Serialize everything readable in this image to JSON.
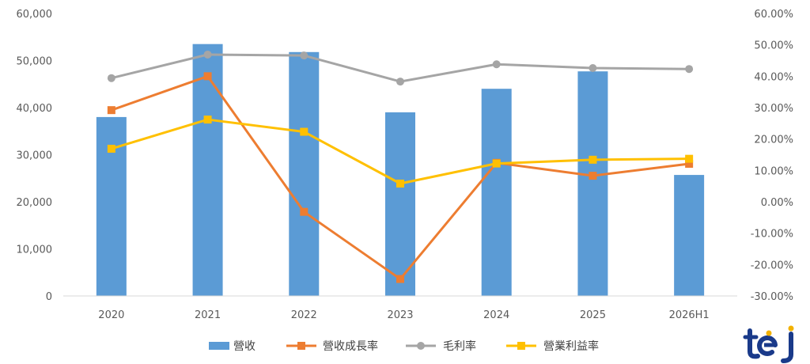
{
  "chart_data": {
    "type": "bar+line",
    "categories": [
      "2020",
      "2021",
      "2022",
      "2023",
      "2024",
      "2025",
      "2026H1"
    ],
    "left_axis": {
      "min": 0,
      "max": 60000,
      "step": 10000,
      "tick_labels": [
        "0",
        "10,000",
        "20,000",
        "30,000",
        "40,000",
        "50,000",
        "60,000"
      ]
    },
    "right_axis": {
      "min": -30,
      "max": 60,
      "step": 10,
      "tick_labels": [
        "-30.00%",
        "-20.00%",
        "-10.00%",
        "0.00%",
        "10.00%",
        "20.00%",
        "30.00%",
        "40.00%",
        "50.00%",
        "60.00%"
      ]
    },
    "series": [
      {
        "name": "營收",
        "type": "bar",
        "axis": "left",
        "color": "#5B9BD5",
        "values": [
          38000,
          53500,
          51800,
          39000,
          44000,
          47700,
          25700
        ]
      },
      {
        "name": "營收成長率",
        "type": "line",
        "axis": "right",
        "marker": "square",
        "color": "#ED7D31",
        "values": [
          29.2,
          40.0,
          -3.2,
          -24.6,
          12.4,
          8.3,
          12.1
        ]
      },
      {
        "name": "毛利率",
        "type": "line",
        "axis": "right",
        "marker": "circle",
        "color": "#A5A5A5",
        "values": [
          39.4,
          46.9,
          46.6,
          38.3,
          43.8,
          42.6,
          42.3
        ]
      },
      {
        "name": "營業利益率",
        "type": "line",
        "axis": "right",
        "marker": "square",
        "color": "#FFC000",
        "values": [
          16.9,
          26.2,
          22.3,
          5.8,
          12.2,
          13.4,
          13.7
        ]
      }
    ],
    "legend_position": "bottom",
    "grid": false
  },
  "logo_text": "tej"
}
